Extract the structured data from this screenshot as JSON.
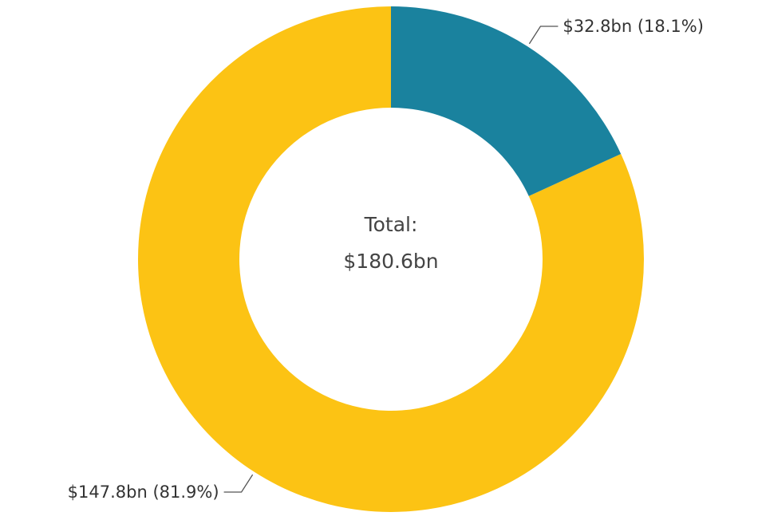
{
  "chart_data": {
    "type": "donut",
    "values": [
      32.8,
      147.8
    ],
    "value_labels": [
      "$32.8bn (18.1%)",
      "$147.8bn (81.9%)"
    ],
    "colors": [
      "#1a829e",
      "#fcc314"
    ],
    "center_title": "Total:",
    "center_value": "$180.6bn"
  }
}
